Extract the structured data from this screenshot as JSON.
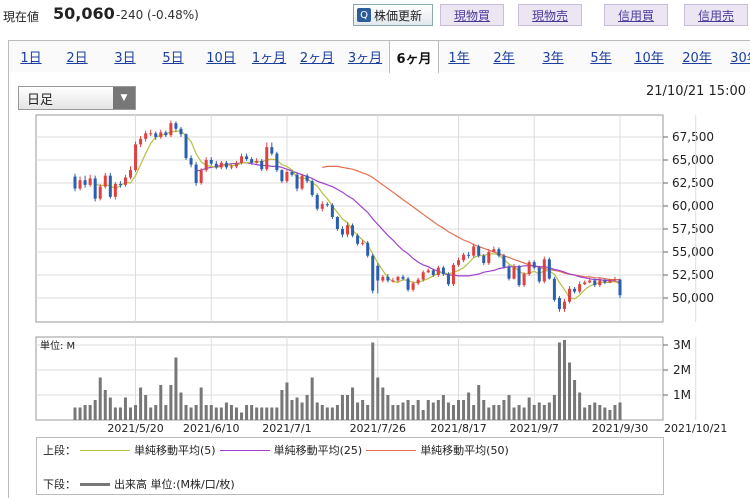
{
  "header": {
    "price_label": "現在値",
    "price_value": "50,060",
    "price_change": "-240 (-0.48%)",
    "update_button": "株価更新",
    "trade_buttons": [
      "現物買",
      "現物売",
      "信用買",
      "信用売"
    ]
  },
  "tabs": [
    "1日",
    "2日",
    "3日",
    "5日",
    "10日",
    "1ヶ月",
    "2ヶ月",
    "3ヶ月",
    "6ヶ月",
    "1年",
    "2年",
    "3年",
    "5年",
    "10年",
    "20年",
    "30年"
  ],
  "active_tab": "6ヶ月",
  "interval_select": "日足",
  "datetime": "21/10/21 15:00",
  "colors": {
    "up": "#e04040",
    "down": "#2a5fb0",
    "ma5": "#b8c040",
    "ma25": "#a040d0",
    "ma50": "#e07050",
    "volume": "#777777"
  },
  "legend": {
    "upper_label": "上段：",
    "ma5": "単純移動平均(5)",
    "ma25": "単純移動平均(25)",
    "ma50": "単純移動平均(50)",
    "lower_label": "下段：",
    "volume": "出来高 単位:(M株/口/枚)"
  },
  "chart_data": {
    "type": "candlestick",
    "price_ticks": [
      "67,500",
      "65,000",
      "62,500",
      "60,000",
      "57,500",
      "55,000",
      "52,500",
      "50,000"
    ],
    "price_tick_values": [
      67500,
      65000,
      62500,
      60000,
      57500,
      55000,
      52500,
      50000
    ],
    "volume_ticks": [
      "3M",
      "2M",
      "1M"
    ],
    "volume_tick_values": [
      3,
      2,
      1
    ],
    "volume_unit_label": "単位: M",
    "x_labels": [
      "2021/5/20",
      "2021/6/10",
      "2021/7/1",
      "2021/7/26",
      "2021/8/17",
      "2021/9/7",
      "2021/9/30",
      "2021/10/21"
    ],
    "x_label_index": [
      12,
      27,
      42,
      60,
      76,
      91,
      108,
      123
    ],
    "close": [
      61900,
      62800,
      62300,
      63000,
      60800,
      62100,
      63300,
      61000,
      62400,
      62300,
      63100,
      63900,
      66700,
      67300,
      67900,
      67900,
      67500,
      68000,
      67700,
      69000,
      68400,
      67800,
      65200,
      64500,
      62500,
      63900,
      65000,
      64600,
      64200,
      64700,
      64200,
      64300,
      64700,
      65400,
      65100,
      64700,
      64900,
      64000,
      66400,
      65700,
      63900,
      62700,
      63700,
      63400,
      61900,
      63300,
      62700,
      61200,
      59700,
      60200,
      60100,
      58800,
      57500,
      56900,
      57900,
      56800,
      55900,
      56000,
      54600,
      50800,
      51900,
      52300,
      51900,
      51900,
      52300,
      52100,
      50900,
      51600,
      52000,
      52800,
      53000,
      52500,
      53300,
      52600,
      51500,
      53600,
      54100,
      54700,
      54600,
      55600,
      54600,
      53800,
      55000,
      55300,
      54600,
      53400,
      52100,
      53400,
      51400,
      52600,
      53900,
      53300,
      51800,
      54200,
      52100,
      49800,
      48800,
      49600,
      51000,
      50700,
      51500,
      51700,
      51900,
      51400,
      51900,
      51700,
      51900,
      52000,
      50300
    ],
    "open": [
      63200,
      61900,
      62800,
      62300,
      63000,
      60800,
      62100,
      63300,
      61000,
      62400,
      62300,
      63100,
      63900,
      66700,
      67300,
      67900,
      67900,
      67500,
      68000,
      67700,
      69000,
      68400,
      67800,
      65200,
      64500,
      62500,
      63900,
      65000,
      64600,
      64200,
      64700,
      64200,
      64300,
      64700,
      65400,
      65100,
      64700,
      64900,
      64000,
      66400,
      65700,
      63900,
      62700,
      63700,
      63400,
      61900,
      63300,
      62700,
      61200,
      59700,
      60200,
      60100,
      58800,
      57500,
      56900,
      57900,
      56800,
      55900,
      56000,
      54600,
      53500,
      51900,
      52300,
      51900,
      51900,
      52300,
      52100,
      50900,
      51600,
      52000,
      52800,
      53000,
      52500,
      53300,
      52600,
      51500,
      53600,
      54100,
      54700,
      54600,
      55600,
      54600,
      53800,
      55000,
      55300,
      54600,
      53400,
      52100,
      53400,
      51400,
      52600,
      53900,
      53300,
      51800,
      54200,
      52100,
      50000,
      48800,
      49600,
      51000,
      50700,
      51500,
      51700,
      51900,
      51400,
      51900,
      51700,
      51900,
      52000
    ],
    "high": [
      63500,
      63200,
      63300,
      63400,
      63300,
      62400,
      63600,
      63600,
      62600,
      62700,
      63400,
      64300,
      67000,
      67600,
      68200,
      68300,
      68100,
      68300,
      68200,
      69300,
      69200,
      68600,
      67900,
      65500,
      64800,
      64100,
      65300,
      65300,
      64900,
      64900,
      64900,
      64500,
      64900,
      65700,
      65700,
      65300,
      65200,
      65100,
      66900,
      66900,
      65900,
      64000,
      63900,
      63900,
      63600,
      63500,
      63500,
      62900,
      61400,
      60500,
      60400,
      60300,
      58900,
      57800,
      58200,
      58100,
      57000,
      56300,
      56200,
      54800,
      53800,
      52500,
      52600,
      52200,
      52400,
      52500,
      52300,
      51800,
      52200,
      53000,
      53200,
      53200,
      53500,
      53500,
      52800,
      53800,
      54400,
      54900,
      55000,
      55900,
      55800,
      54800,
      55300,
      55600,
      55500,
      54800,
      53600,
      53700,
      53600,
      52800,
      54100,
      54100,
      53500,
      54500,
      54400,
      52300,
      50200,
      49900,
      51300,
      51200,
      51800,
      51900,
      52200,
      52100,
      52200,
      52100,
      52100,
      52300,
      52100
    ],
    "low": [
      61600,
      61700,
      62000,
      62100,
      60500,
      60600,
      61900,
      60800,
      60700,
      62000,
      62100,
      62900,
      63700,
      66400,
      67000,
      67600,
      67200,
      67300,
      67500,
      67500,
      68100,
      67500,
      65000,
      64200,
      62200,
      62300,
      63700,
      64400,
      64000,
      64000,
      64000,
      64000,
      64100,
      64500,
      64900,
      64500,
      64600,
      63800,
      63800,
      65500,
      63700,
      62500,
      62500,
      63200,
      61600,
      61700,
      62500,
      61000,
      59500,
      59400,
      59900,
      58600,
      57300,
      56600,
      56600,
      56600,
      55700,
      55700,
      54400,
      50500,
      50500,
      51700,
      51700,
      51700,
      51700,
      51900,
      50700,
      50700,
      51400,
      51800,
      52700,
      52300,
      52300,
      52400,
      51300,
      51300,
      53400,
      53900,
      54300,
      54400,
      54400,
      53600,
      53600,
      55000,
      54400,
      53200,
      51900,
      52000,
      51200,
      51200,
      52400,
      53100,
      51600,
      51600,
      52000,
      49600,
      48500,
      48500,
      49400,
      50500,
      50500,
      51400,
      51600,
      51200,
      51200,
      51500,
      51600,
      51700,
      50000
    ],
    "ma5": [
      null,
      null,
      null,
      null,
      62400,
      62200,
      62300,
      62200,
      61900,
      62200,
      62600,
      62500,
      63300,
      64500,
      65700,
      66800,
      67500,
      67700,
      67800,
      68100,
      68100,
      68200,
      67600,
      67000,
      65700,
      64800,
      64400,
      64300,
      64200,
      64300,
      64500,
      64400,
      64400,
      64700,
      64700,
      64800,
      64800,
      64800,
      65000,
      65100,
      65000,
      64500,
      64300,
      63900,
      63100,
      63000,
      63000,
      62500,
      62200,
      61400,
      60800,
      60000,
      59300,
      58600,
      58200,
      57400,
      56800,
      56300,
      55800,
      54800,
      53800,
      53000,
      52200,
      51800,
      51700,
      52000,
      51900,
      51700,
      51700,
      51900,
      52100,
      52400,
      52700,
      52800,
      52600,
      52800,
      53000,
      53300,
      53800,
      54400,
      54600,
      54600,
      54800,
      54800,
      54700,
      54200,
      53700,
      53400,
      52900,
      52600,
      52700,
      52900,
      52600,
      53000,
      52900,
      52600,
      51700,
      50900,
      50000,
      49900,
      50300,
      50900,
      51300,
      51500,
      51700,
      51700,
      51700,
      51800,
      51500
    ],
    "ma25": [
      null,
      null,
      null,
      null,
      null,
      null,
      null,
      null,
      null,
      null,
      null,
      null,
      null,
      null,
      null,
      null,
      null,
      null,
      null,
      null,
      null,
      null,
      null,
      null,
      63800,
      63900,
      64100,
      64200,
      64300,
      64400,
      64500,
      64600,
      64600,
      64700,
      64700,
      64600,
      64500,
      64400,
      64400,
      64300,
      64300,
      64200,
      64000,
      63800,
      63600,
      63400,
      63200,
      63000,
      62700,
      62500,
      62300,
      62100,
      61800,
      61500,
      61100,
      60800,
      60300,
      59800,
      59300,
      58600,
      58000,
      57400,
      56800,
      56300,
      55700,
      55200,
      54800,
      54300,
      53900,
      53600,
      53400,
      53100,
      52900,
      52700,
      52500,
      52500,
      52400,
      52400,
      52400,
      52500,
      52600,
      52800,
      52900,
      53000,
      53200,
      53300,
      53400,
      53400,
      53400,
      53500,
      53500,
      53500,
      53400,
      53400,
      53300,
      53100,
      53000,
      52800,
      52600,
      52500,
      52300,
      52200,
      52100,
      52000,
      52000,
      51900,
      51900,
      51800,
      51700
    ],
    "ma50": [
      null,
      null,
      null,
      null,
      null,
      null,
      null,
      null,
      null,
      null,
      null,
      null,
      null,
      null,
      null,
      null,
      null,
      null,
      null,
      null,
      null,
      null,
      null,
      null,
      null,
      null,
      null,
      null,
      null,
      null,
      null,
      null,
      null,
      null,
      null,
      null,
      null,
      null,
      null,
      null,
      null,
      null,
      null,
      null,
      null,
      null,
      null,
      null,
      null,
      64200,
      64300,
      64300,
      64300,
      64200,
      64100,
      64000,
      63800,
      63600,
      63400,
      63100,
      62700,
      62300,
      61900,
      61500,
      61100,
      60700,
      60300,
      59900,
      59500,
      59100,
      58700,
      58300,
      57900,
      57600,
      57200,
      56900,
      56600,
      56300,
      56100,
      55800,
      55600,
      55400,
      55200,
      55000,
      54800,
      54600,
      54400,
      54200,
      54000,
      53800,
      53600,
      53500,
      53300,
      53200,
      53100,
      53000,
      52900,
      52700,
      52600,
      52500,
      52400,
      52300,
      52300,
      52200,
      52200,
      52100,
      52000,
      52000,
      52000
    ],
    "volume": [
      0.5,
      0.5,
      0.6,
      0.6,
      0.8,
      1.7,
      1.2,
      0.9,
      0.5,
      0.5,
      0.9,
      0.5,
      0.6,
      1.3,
      1.0,
      0.5,
      0.6,
      1.4,
      0.6,
      1.4,
      2.5,
      1.1,
      0.6,
      0.5,
      0.6,
      1.3,
      0.6,
      0.6,
      0.5,
      0.5,
      0.7,
      0.6,
      0.5,
      0.3,
      0.6,
      0.6,
      0.5,
      0.5,
      0.5,
      0.5,
      0.5,
      1.2,
      1.5,
      0.8,
      0.9,
      0.7,
      1.0,
      1.7,
      0.7,
      0.6,
      0.5,
      0.5,
      0.6,
      1.0,
      1.0,
      1.3,
      0.7,
      0.8,
      0.6,
      3.1,
      1.7,
      1.3,
      1.0,
      0.6,
      0.6,
      0.7,
      0.8,
      0.6,
      0.8,
      0.4,
      0.8,
      0.7,
      0.8,
      1.0,
      0.7,
      0.6,
      0.8,
      0.8,
      1.1,
      0.6,
      1.4,
      0.8,
      0.5,
      0.6,
      0.6,
      0.8,
      1.0,
      0.5,
      0.6,
      0.5,
      0.9,
      0.6,
      0.7,
      0.6,
      0.7,
      1.0,
      3.1,
      3.2,
      2.3,
      1.6,
      1.1,
      0.5,
      0.6,
      0.7,
      0.6,
      0.5,
      0.4,
      0.6,
      0.7
    ]
  }
}
